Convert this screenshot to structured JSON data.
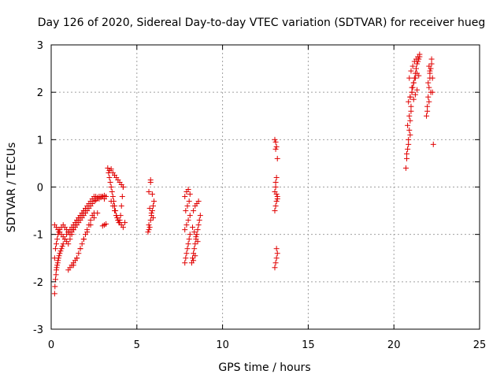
{
  "chart_data": {
    "type": "scatter",
    "title": "Day 126 of 2020, Sidereal Day-to-day VTEC variation (SDTVAR) for receiver hueg",
    "xlabel": "GPS time / hours",
    "ylabel": "SDTVAR / TECUs",
    "xlim": [
      0,
      25
    ],
    "ylim": [
      -3,
      3
    ],
    "xticks": [
      "0",
      "5",
      "10",
      "15",
      "20",
      "25"
    ],
    "yticks": [
      "-3",
      "-2",
      "-1",
      "0",
      "1",
      "2",
      "3"
    ],
    "grid": true,
    "marker": "+",
    "color": "#e00000",
    "series": [
      {
        "x": [
          0.2,
          0.22,
          0.25,
          0.28,
          0.3,
          0.32,
          0.35,
          0.38,
          0.4,
          0.43,
          0.46,
          0.5,
          0.55,
          0.6,
          0.65,
          0.7,
          0.8,
          0.9,
          1.0,
          1.1,
          1.2,
          1.3,
          1.4,
          1.5,
          1.6,
          1.7,
          1.8,
          1.9,
          2.0,
          2.1,
          2.2,
          2.3,
          2.4,
          2.5,
          2.6,
          2.7,
          2.8,
          2.9,
          3.0,
          3.1,
          3.2,
          0.2,
          0.25,
          0.3,
          0.35,
          0.4,
          0.45,
          0.5,
          0.6,
          0.7,
          0.8,
          0.9,
          1.0,
          1.1,
          1.2,
          1.3,
          1.4,
          1.5,
          1.6,
          1.7,
          1.8,
          1.9,
          2.0,
          2.1,
          2.2,
          2.3,
          2.4,
          2.5,
          2.6,
          2.7,
          2.8,
          2.9,
          3.0,
          3.1,
          0.2,
          0.3,
          0.4,
          0.5,
          0.6,
          0.7,
          0.8,
          0.9,
          1.0,
          1.1,
          1.2,
          1.3,
          1.4,
          1.5,
          1.6,
          1.7,
          1.8,
          1.9,
          2.0,
          1.0,
          1.1,
          1.2,
          1.3,
          1.4,
          1.5,
          1.6,
          1.7,
          1.8,
          1.9,
          2.0,
          2.1,
          2.2,
          2.3,
          2.4,
          2.5,
          1.3,
          1.5,
          1.7,
          1.9,
          2.1,
          2.3,
          2.5,
          2.7,
          3.1,
          3.2,
          3.0,
          3.3,
          3.35,
          3.4,
          3.45,
          3.5,
          3.55,
          3.6,
          3.65,
          3.7,
          3.75,
          3.8,
          3.85,
          3.9,
          3.95,
          4.0,
          4.05,
          4.1,
          4.15,
          4.2,
          3.4,
          3.5,
          3.6,
          3.7,
          3.8,
          3.9,
          4.0,
          4.1,
          4.2,
          3.5,
          3.6,
          3.7,
          3.8,
          3.9,
          4.0,
          4.1,
          4.2,
          4.3,
          5.65,
          5.7,
          5.75,
          5.8,
          5.85,
          5.9,
          5.95,
          6.0,
          5.7,
          5.8,
          5.9,
          5.75,
          5.85,
          5.95,
          5.7,
          5.8,
          7.8,
          7.85,
          7.9,
          7.95,
          8.0,
          8.05,
          8.1,
          7.8,
          7.9,
          8.0,
          8.1,
          7.85,
          7.95,
          8.05,
          7.8,
          7.9,
          8.0,
          8.1,
          8.2,
          8.25,
          8.3,
          8.35,
          8.4,
          8.45,
          8.5,
          8.55,
          8.6,
          8.65,
          8.7,
          8.3,
          8.4,
          8.5,
          8.6,
          8.25,
          8.35,
          8.45,
          8.55,
          8.3,
          8.4,
          13.05,
          13.1,
          13.15,
          13.2,
          13.05,
          13.1,
          13.15,
          13.2,
          13.05,
          13.1,
          13.15,
          13.2,
          13.1,
          13.15,
          13.1,
          13.15,
          13.2,
          13.1,
          13.05,
          13.15,
          20.7,
          20.75,
          20.8,
          20.85,
          20.9,
          20.95,
          21.0,
          20.75,
          20.85,
          20.95,
          20.8,
          20.9,
          21.0,
          20.85,
          20.95,
          21.05,
          21.1,
          21.15,
          21.2,
          21.25,
          21.3,
          21.35,
          21.4,
          21.45,
          21.5,
          20.9,
          21.0,
          21.1,
          21.2,
          21.3,
          21.4,
          21.5,
          21.05,
          21.15,
          21.25,
          21.35,
          21.45,
          20.95,
          21.05,
          21.15,
          21.25,
          21.35,
          21.9,
          21.95,
          22.0,
          22.05,
          22.1,
          22.15,
          22.2,
          21.95,
          22.05,
          22.15,
          22.0,
          22.1,
          22.2,
          22.05,
          22.1,
          22.25,
          22.25,
          22.3
        ],
        "y": [
          -2.25,
          -2.1,
          -1.95,
          -1.85,
          -1.75,
          -1.7,
          -1.65,
          -1.6,
          -1.55,
          -1.5,
          -1.45,
          -1.4,
          -1.35,
          -1.3,
          -1.25,
          -1.2,
          -1.1,
          -1.0,
          -0.95,
          -0.9,
          -0.85,
          -0.8,
          -0.75,
          -0.7,
          -0.65,
          -0.6,
          -0.55,
          -0.5,
          -0.45,
          -0.4,
          -0.35,
          -0.3,
          -0.25,
          -0.2,
          -0.2,
          -0.22,
          -0.25,
          -0.2,
          -0.2,
          -0.25,
          -0.2,
          -1.5,
          -1.3,
          -1.2,
          -1.1,
          -1.0,
          -0.95,
          -0.9,
          -0.85,
          -0.8,
          -0.85,
          -0.9,
          -0.95,
          -1.0,
          -0.95,
          -0.9,
          -0.85,
          -0.8,
          -0.75,
          -0.7,
          -0.65,
          -0.6,
          -0.55,
          -0.5,
          -0.45,
          -0.4,
          -0.35,
          -0.3,
          -0.28,
          -0.25,
          -0.2,
          -0.22,
          -0.2,
          -0.18,
          -0.8,
          -0.85,
          -0.9,
          -0.95,
          -1.0,
          -1.05,
          -1.1,
          -1.15,
          -1.2,
          -1.1,
          -1.0,
          -0.9,
          -0.8,
          -0.7,
          -0.65,
          -0.6,
          -0.55,
          -0.5,
          -0.45,
          -1.75,
          -1.7,
          -1.65,
          -1.6,
          -1.55,
          -1.5,
          -1.4,
          -1.3,
          -1.2,
          -1.1,
          -1.0,
          -0.9,
          -0.8,
          -0.7,
          -0.6,
          -0.55,
          -1.65,
          -1.5,
          -1.3,
          -1.1,
          -0.95,
          -0.8,
          -0.65,
          -0.55,
          -0.8,
          -0.78,
          -0.82,
          0.4,
          0.3,
          0.2,
          0.1,
          0.0,
          -0.1,
          -0.2,
          -0.3,
          -0.4,
          -0.5,
          -0.6,
          -0.65,
          -0.7,
          -0.75,
          -0.7,
          -0.6,
          -0.4,
          -0.2,
          0.0,
          0.35,
          0.38,
          0.3,
          0.25,
          0.2,
          0.15,
          0.1,
          0.05,
          0.0,
          -0.3,
          -0.4,
          -0.5,
          -0.6,
          -0.7,
          -0.75,
          -0.8,
          -0.85,
          -0.75,
          -0.95,
          -0.9,
          -0.85,
          -0.7,
          -0.6,
          -0.5,
          -0.4,
          -0.3,
          -0.1,
          0.1,
          -0.15,
          -0.45,
          -0.55,
          -0.65,
          -0.8,
          0.15,
          -1.6,
          -1.5,
          -1.4,
          -1.3,
          -1.2,
          -1.1,
          -1.0,
          -0.9,
          -0.8,
          -0.7,
          -0.6,
          -0.5,
          -0.4,
          -0.3,
          -0.2,
          -0.1,
          -0.05,
          -0.15,
          -1.6,
          -1.5,
          -1.4,
          -1.3,
          -1.2,
          -1.1,
          -1.0,
          -0.9,
          -0.8,
          -0.7,
          -0.6,
          -0.5,
          -0.4,
          -0.35,
          -0.3,
          -0.85,
          -0.95,
          -1.05,
          -1.15,
          -1.55,
          -1.45,
          -1.7,
          -1.6,
          -1.5,
          -1.4,
          -0.5,
          -0.4,
          -0.3,
          -0.2,
          -0.1,
          0.0,
          -0.15,
          -0.25,
          0.1,
          0.2,
          0.8,
          0.85,
          0.6,
          0.95,
          1.0,
          -1.3,
          0.4,
          0.6,
          0.8,
          1.0,
          1.2,
          1.4,
          1.6,
          0.7,
          0.9,
          1.1,
          1.3,
          1.5,
          1.7,
          1.8,
          1.9,
          2.0,
          2.1,
          2.2,
          2.3,
          2.4,
          2.5,
          2.6,
          2.65,
          2.7,
          2.75,
          2.3,
          2.45,
          2.55,
          2.65,
          2.7,
          2.75,
          2.8,
          2.1,
          2.2,
          2.3,
          2.4,
          2.35,
          1.9,
          2.0,
          1.85,
          1.95,
          2.05,
          1.5,
          1.7,
          1.9,
          2.1,
          2.3,
          2.5,
          2.7,
          1.6,
          1.8,
          2.0,
          2.2,
          2.4,
          2.6,
          2.55,
          2.45,
          2.3,
          2.0,
          0.9
        ]
      }
    ]
  }
}
